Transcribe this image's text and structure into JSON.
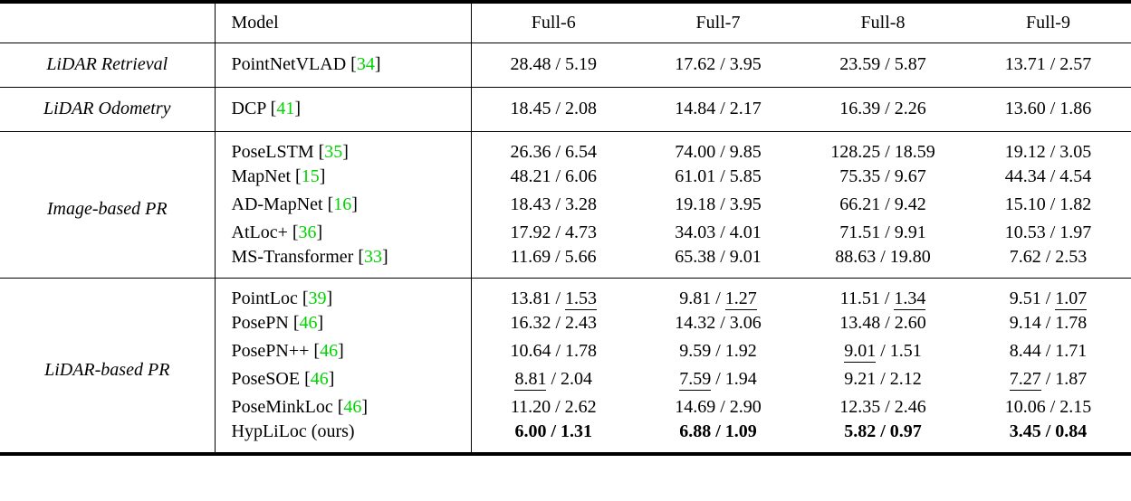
{
  "table": {
    "citation_color": "#00D400",
    "rule_color": "#000000",
    "header": {
      "corner": "",
      "model": "Model",
      "columns": [
        "Full-6",
        "Full-7",
        "Full-8",
        "Full-9"
      ]
    },
    "value_separator": " / ",
    "sections": [
      {
        "category": "LiDAR Retrieval",
        "rows": [
          {
            "model": "PointNetVLAD",
            "cite": "34",
            "cells": [
              {
                "a": "28.48",
                "b": "5.19"
              },
              {
                "a": "17.62",
                "b": "3.95"
              },
              {
                "a": "23.59",
                "b": "5.87"
              },
              {
                "a": "13.71",
                "b": "2.57"
              }
            ]
          }
        ]
      },
      {
        "category": "LiDAR Odometry",
        "rows": [
          {
            "model": "DCP",
            "cite": "41",
            "cells": [
              {
                "a": "18.45",
                "b": "2.08"
              },
              {
                "a": "14.84",
                "b": "2.17"
              },
              {
                "a": "16.39",
                "b": "2.26"
              },
              {
                "a": "13.60",
                "b": "1.86"
              }
            ]
          }
        ]
      },
      {
        "category": "Image-based PR",
        "rows": [
          {
            "model": "PoseLSTM",
            "cite": "35",
            "cells": [
              {
                "a": "26.36",
                "b": "6.54"
              },
              {
                "a": "74.00",
                "b": "9.85"
              },
              {
                "a": "128.25",
                "b": "18.59"
              },
              {
                "a": "19.12",
                "b": "3.05"
              }
            ]
          },
          {
            "model": "MapNet",
            "cite": "15",
            "cells": [
              {
                "a": "48.21",
                "b": "6.06"
              },
              {
                "a": "61.01",
                "b": "5.85"
              },
              {
                "a": "75.35",
                "b": "9.67"
              },
              {
                "a": "44.34",
                "b": "4.54"
              }
            ]
          },
          {
            "model": "AD-MapNet",
            "cite": "16",
            "cells": [
              {
                "a": "18.43",
                "b": "3.28"
              },
              {
                "a": "19.18",
                "b": "3.95"
              },
              {
                "a": "66.21",
                "b": "9.42"
              },
              {
                "a": "15.10",
                "b": "1.82"
              }
            ]
          },
          {
            "model": "AtLoc+",
            "cite": "36",
            "cells": [
              {
                "a": "17.92",
                "b": "4.73"
              },
              {
                "a": "34.03",
                "b": "4.01"
              },
              {
                "a": "71.51",
                "b": "9.91"
              },
              {
                "a": "10.53",
                "b": "1.97"
              }
            ]
          },
          {
            "model": "MS-Transformer",
            "cite": "33",
            "cells": [
              {
                "a": "11.69",
                "b": "5.66"
              },
              {
                "a": "65.38",
                "b": "9.01"
              },
              {
                "a": "88.63",
                "b": "19.80"
              },
              {
                "a": "7.62",
                "b": "2.53"
              }
            ]
          }
        ]
      },
      {
        "category": "LiDAR-based PR",
        "rows": [
          {
            "model": "PointLoc",
            "cite": "39",
            "cells": [
              {
                "a": "13.81",
                "b": "1.53",
                "ub": true
              },
              {
                "a": "9.81",
                "b": "1.27",
                "ub": true
              },
              {
                "a": "11.51",
                "b": "1.34",
                "ub": true
              },
              {
                "a": "9.51",
                "b": "1.07",
                "ub": true
              }
            ]
          },
          {
            "model": "PosePN",
            "cite": "46",
            "cells": [
              {
                "a": "16.32",
                "b": "2.43"
              },
              {
                "a": "14.32",
                "b": "3.06"
              },
              {
                "a": "13.48",
                "b": "2.60"
              },
              {
                "a": "9.14",
                "b": "1.78"
              }
            ]
          },
          {
            "model": "PosePN++",
            "cite": "46",
            "cells": [
              {
                "a": "10.64",
                "b": "1.78"
              },
              {
                "a": "9.59",
                "b": "1.92"
              },
              {
                "a": "9.01",
                "ua": true,
                "b": "1.51"
              },
              {
                "a": "8.44",
                "b": "1.71"
              }
            ]
          },
          {
            "model": "PoseSOE",
            "cite": "46",
            "cells": [
              {
                "a": "8.81",
                "ua": true,
                "b": "2.04"
              },
              {
                "a": "7.59",
                "ua": true,
                "b": "1.94"
              },
              {
                "a": "9.21",
                "b": "2.12"
              },
              {
                "a": "7.27",
                "ua": true,
                "b": "1.87"
              }
            ]
          },
          {
            "model": "PoseMinkLoc",
            "cite": "46",
            "cells": [
              {
                "a": "11.20",
                "b": "2.62"
              },
              {
                "a": "14.69",
                "b": "2.90"
              },
              {
                "a": "12.35",
                "b": "2.46"
              },
              {
                "a": "10.06",
                "b": "2.15"
              }
            ]
          },
          {
            "model": "HypLiLoc (ours)",
            "cite": null,
            "bold": true,
            "cells": [
              {
                "a": "6.00",
                "b": "1.31"
              },
              {
                "a": "6.88",
                "b": "1.09"
              },
              {
                "a": "5.82",
                "b": "0.97"
              },
              {
                "a": "3.45",
                "b": "0.84"
              }
            ]
          }
        ]
      }
    ]
  }
}
